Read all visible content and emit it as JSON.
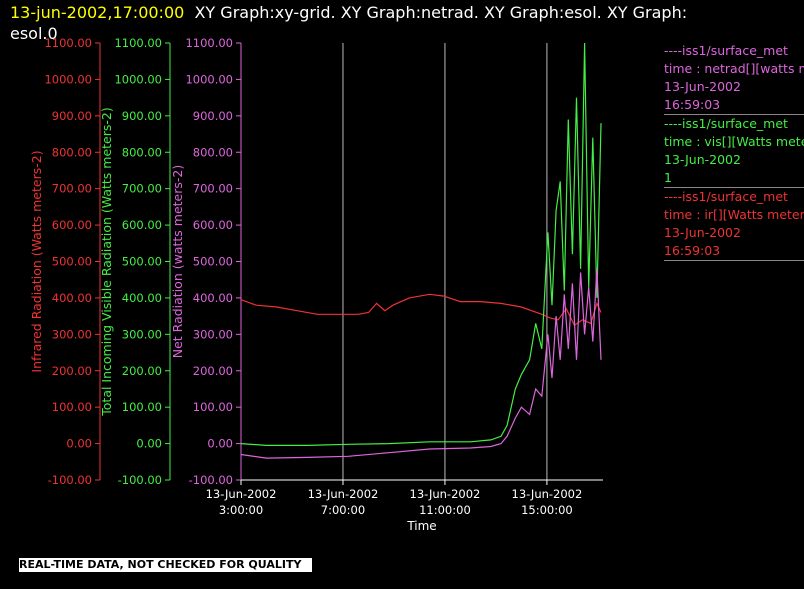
{
  "header": {
    "timestamp": "13-jun-2002,17:00:00",
    "title_rest": "XY Graph:xy-grid.  XY Graph:netrad.  XY Graph:esol.  XY Graph:",
    "title_line2": "esol.0"
  },
  "quality_note": "REAL-TIME DATA, NOT CHECKED FOR QUALITY",
  "legend": [
    {
      "source": "----iss1/surface_met",
      "line1": "time : netrad[][watts me",
      "line2": "13-Jun-2002",
      "line3": "16:59:03",
      "color": "#dd66dd"
    },
    {
      "source": "----iss1/surface_met",
      "line1": "time : vis[][Watts meter",
      "line2": "13-Jun-2002",
      "line3": "1",
      "color": "#44ee44"
    },
    {
      "source": "----iss1/surface_met",
      "line1": "time : ir[][Watts meters",
      "line2": "13-Jun-2002",
      "line3": "16:59:03",
      "color": "#ee3333"
    }
  ],
  "chart_data": {
    "type": "line",
    "xlabel": "Time",
    "x_ticks": [
      {
        "hour": 2.75,
        "date": "13-Jun-2002",
        "time": "3:00:00"
      },
      {
        "hour": 7.75,
        "date": "13-Jun-2002",
        "time": "7:00:00"
      },
      {
        "hour": 12.75,
        "date": "13-Jun-2002",
        "time": "11:00:00"
      },
      {
        "hour": 17.75,
        "date": "13-Jun-2002",
        "time": "15:00:00"
      }
    ],
    "xlim_hours": [
      2.75,
      20.5
    ],
    "ylim": [
      -100,
      1100
    ],
    "y_ticks": [
      "-100.00",
      "0.00",
      "100.00",
      "200.00",
      "300.00",
      "400.00",
      "500.00",
      "600.00",
      "700.00",
      "800.00",
      "900.00",
      "1000.00",
      "1100.00"
    ],
    "grid": true,
    "axes": [
      {
        "label": "Infrared Radiation (Watts meters-2)",
        "color": "#ee3333"
      },
      {
        "label": "Total Incoming Visible Radiation (Watts meters-2)",
        "color": "#44ee44"
      },
      {
        "label": "Net Radiation (watts meters-2)",
        "color": "#dd66dd"
      }
    ],
    "series": [
      {
        "color": "#ee3333",
        "x": [
          2.75,
          3.5,
          4.5,
          5.5,
          6.5,
          7.5,
          8.5,
          9.0,
          9.4,
          9.8,
          10.2,
          11,
          12,
          12.7,
          13.5,
          14.5,
          15.5,
          16.5,
          17.0,
          17.5,
          17.9,
          18.3,
          18.7,
          19.1,
          19.5,
          19.9,
          20.2,
          20.4
        ],
        "y": [
          395,
          380,
          375,
          365,
          355,
          355,
          355,
          360,
          385,
          365,
          380,
          400,
          410,
          405,
          390,
          390,
          385,
          375,
          365,
          355,
          345,
          340,
          370,
          325,
          340,
          330,
          385,
          360
        ]
      },
      {
        "color": "#44ee44",
        "x": [
          2.75,
          4,
          6,
          8,
          10,
          12,
          14,
          15,
          15.5,
          15.8,
          16.2,
          16.5,
          16.9,
          17.2,
          17.5,
          17.8,
          18.0,
          18.2,
          18.4,
          18.6,
          18.8,
          19.0,
          19.2,
          19.4,
          19.6,
          19.8,
          20.0,
          20.2,
          20.4
        ],
        "y": [
          0,
          -5,
          -5,
          -2,
          0,
          5,
          5,
          10,
          20,
          50,
          150,
          190,
          230,
          330,
          260,
          580,
          380,
          640,
          720,
          420,
          890,
          520,
          950,
          480,
          1100,
          430,
          840,
          400,
          880
        ]
      },
      {
        "color": "#dd66dd",
        "x": [
          2.75,
          4,
          6,
          8,
          10,
          12,
          14,
          15,
          15.5,
          15.8,
          16.2,
          16.5,
          16.9,
          17.2,
          17.5,
          17.8,
          18.0,
          18.2,
          18.4,
          18.6,
          18.8,
          19.0,
          19.2,
          19.4,
          19.6,
          19.8,
          20.0,
          20.2,
          20.4
        ],
        "y": [
          -30,
          -40,
          -38,
          -35,
          -25,
          -15,
          -12,
          -8,
          0,
          20,
          70,
          100,
          80,
          150,
          130,
          300,
          180,
          350,
          230,
          410,
          260,
          440,
          230,
          470,
          300,
          430,
          280,
          480,
          230
        ]
      }
    ]
  }
}
